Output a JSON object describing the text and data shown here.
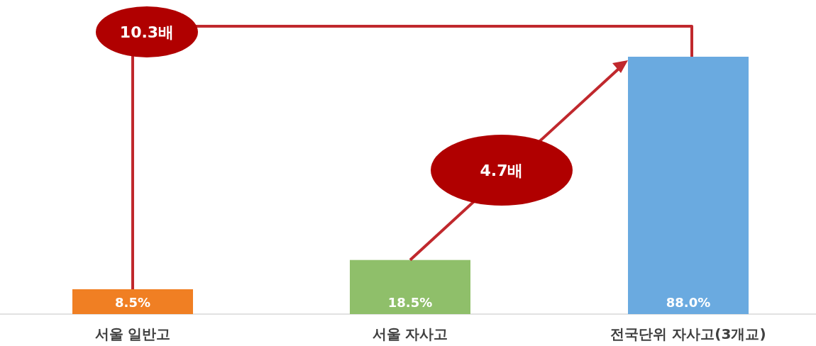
{
  "chart_data": {
    "type": "bar",
    "categories": [
      "서울 일반고",
      "서울 자사고",
      "전국단위 자사고(3개교)"
    ],
    "values": [
      8.5,
      18.5,
      88.0
    ],
    "colors": [
      "#f07f23",
      "#8fbf6a",
      "#6aaae0"
    ],
    "value_labels": [
      "8.5%",
      "18.5%",
      "88.0%"
    ],
    "annotations": [
      "10.3배",
      "4.7배"
    ]
  }
}
